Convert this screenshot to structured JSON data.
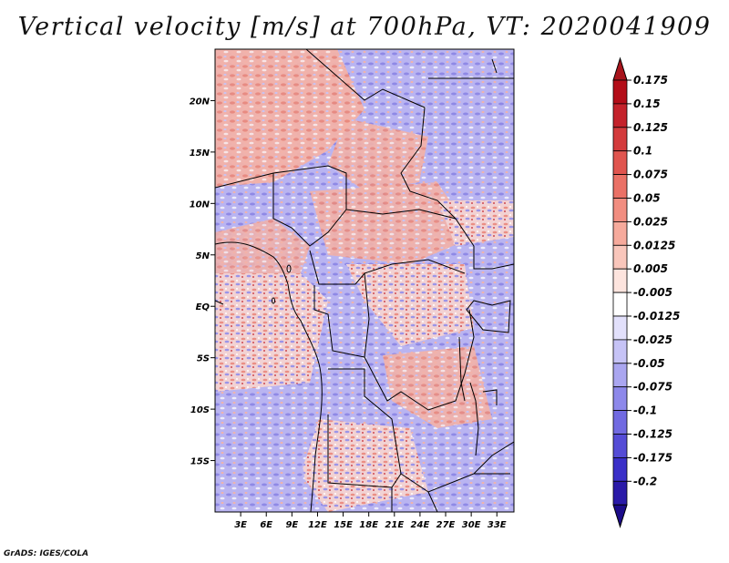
{
  "title": "Vertical velocity [m/s] at 700hPa, VT: 2020041909",
  "footer": "GrADS: IGES/COLA",
  "map": {
    "lat_labels": [
      "20N",
      "15N",
      "10N",
      "5N",
      "EQ",
      "5S",
      "10S",
      "15S"
    ],
    "lat_values": [
      20,
      15,
      10,
      5,
      0,
      -5,
      -10,
      -15
    ],
    "lon_labels": [
      "3E",
      "6E",
      "9E",
      "12E",
      "15E",
      "18E",
      "21E",
      "24E",
      "27E",
      "30E",
      "33E"
    ],
    "lon_values": [
      3,
      6,
      9,
      12,
      15,
      18,
      21,
      24,
      27,
      30,
      33
    ],
    "lat_range": [
      -20,
      25
    ],
    "lon_range": [
      0,
      35
    ]
  },
  "colorbar": {
    "labels": [
      "0.175",
      "0.15",
      "0.125",
      "0.1",
      "0.075",
      "0.05",
      "0.025",
      "0.0125",
      "0.005",
      "-0.005",
      "-0.0125",
      "-0.025",
      "-0.05",
      "-0.075",
      "-0.1",
      "-0.125",
      "-0.175",
      "-0.2"
    ],
    "colors": [
      "#b30d18",
      "#c4222b",
      "#d33b3c",
      "#e0554f",
      "#ea7166",
      "#f18d80",
      "#f6aa9c",
      "#f9c6bb",
      "#fde4de",
      "#ffffff",
      "#e2e0fb",
      "#c6c3f6",
      "#aaa6f0",
      "#8d88ea",
      "#716ae1",
      "#554cd6",
      "#3a2fc8",
      "#2a1aa8"
    ],
    "top_arrow_color": "#a8141c",
    "bottom_arrow_color": "#1c0c8a"
  }
}
